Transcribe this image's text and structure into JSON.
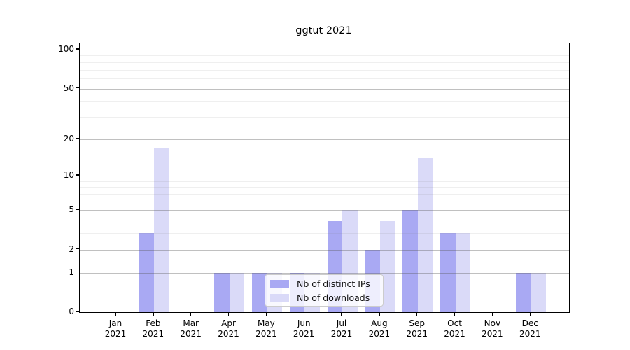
{
  "chart_data": {
    "type": "bar",
    "title": "ggtut 2021",
    "categories": [
      {
        "month": "Jan",
        "year": "2021"
      },
      {
        "month": "Feb",
        "year": "2021"
      },
      {
        "month": "Mar",
        "year": "2021"
      },
      {
        "month": "Apr",
        "year": "2021"
      },
      {
        "month": "May",
        "year": "2021"
      },
      {
        "month": "Jun",
        "year": "2021"
      },
      {
        "month": "Jul",
        "year": "2021"
      },
      {
        "month": "Aug",
        "year": "2021"
      },
      {
        "month": "Sep",
        "year": "2021"
      },
      {
        "month": "Oct",
        "year": "2021"
      },
      {
        "month": "Nov",
        "year": "2021"
      },
      {
        "month": "Dec",
        "year": "2021"
      }
    ],
    "series": [
      {
        "name": "Nb of distinct IPs",
        "color": "#a9a9f3",
        "values": [
          0,
          3,
          0,
          1,
          1,
          1,
          4,
          2,
          5,
          3,
          0,
          1
        ]
      },
      {
        "name": "Nb of downloads",
        "color": "#dadaf8",
        "values": [
          0,
          17,
          0,
          1,
          1,
          1,
          5,
          4,
          14,
          3,
          0,
          1
        ]
      }
    ],
    "xlabel": "",
    "ylabel": "",
    "yscale": "log1p",
    "ylim": [
      0,
      113
    ],
    "yticks": [
      0,
      1,
      2,
      5,
      10,
      20,
      50,
      100
    ],
    "yticks_minor": [
      3,
      4,
      6,
      7,
      8,
      9,
      30,
      40,
      60,
      70,
      80,
      90
    ],
    "grid": "on",
    "legend_position": "lower-center"
  }
}
